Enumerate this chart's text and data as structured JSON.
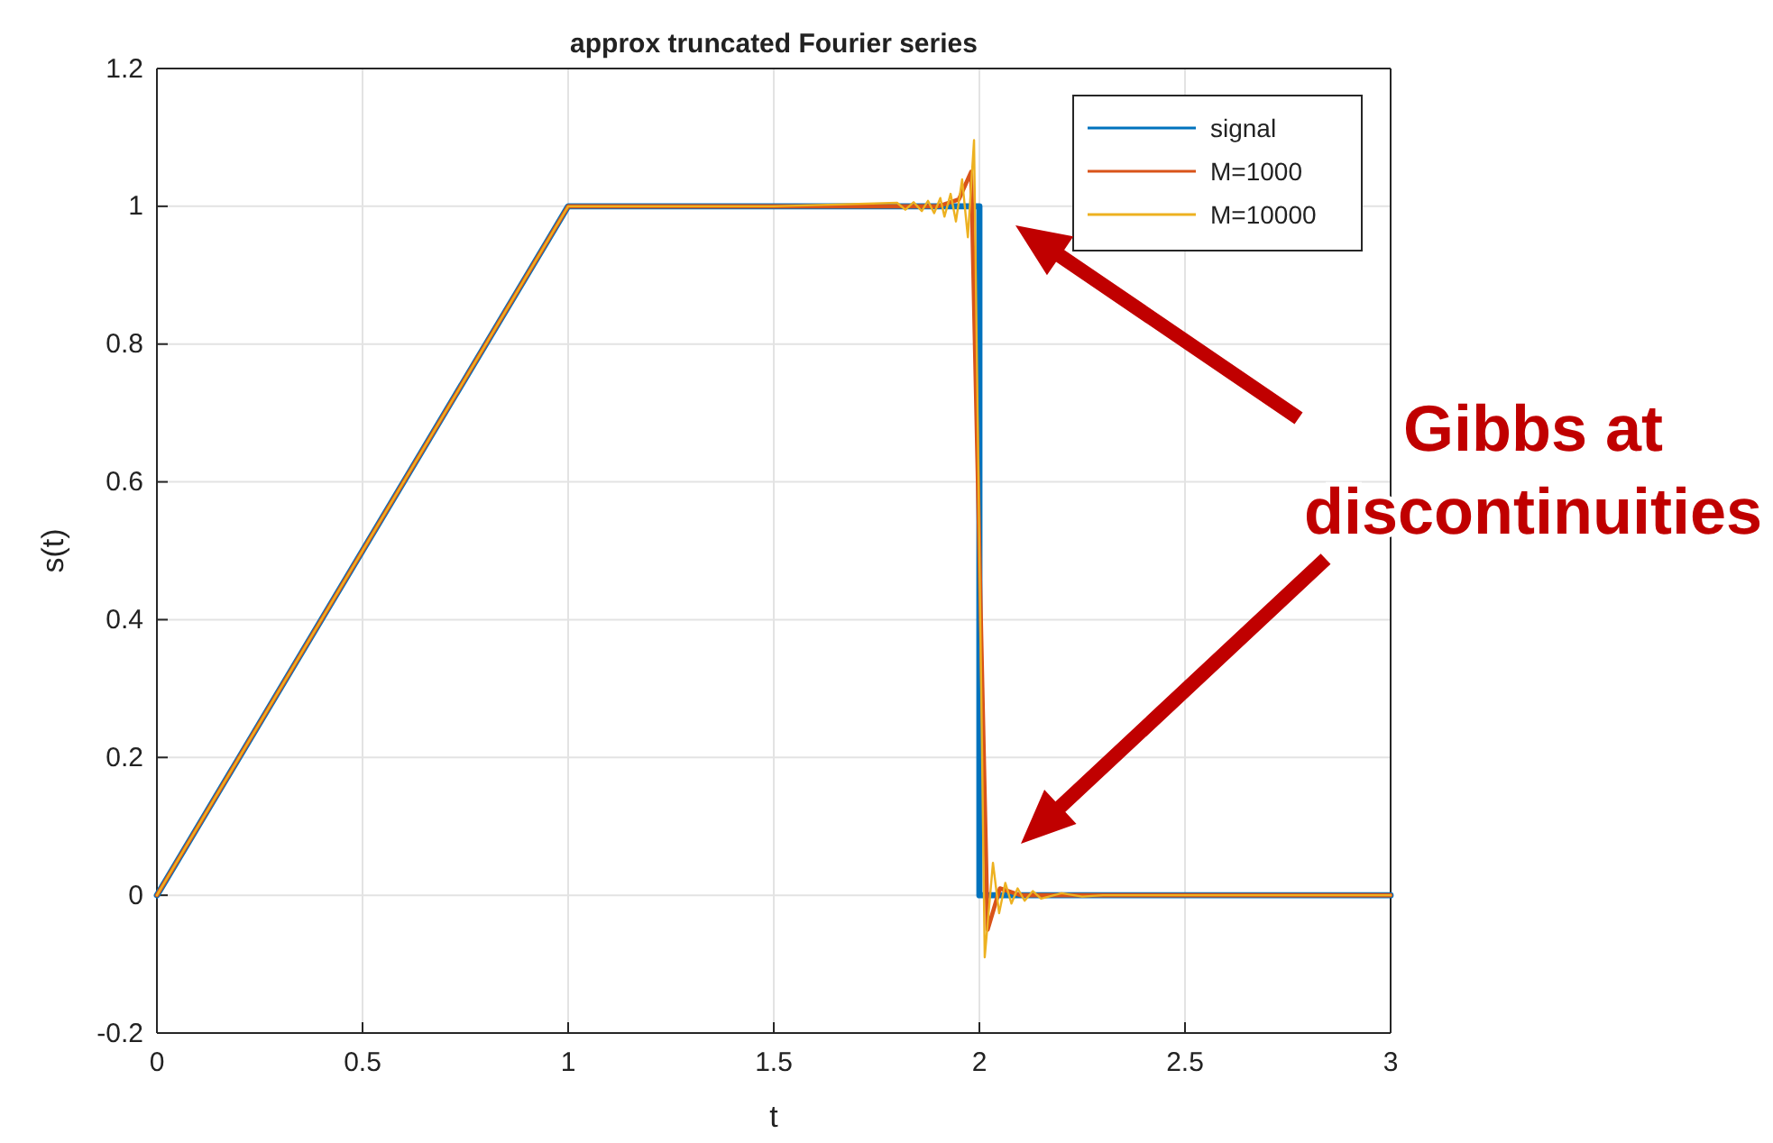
{
  "chart_data": {
    "type": "line",
    "title": "approx truncated Fourier series",
    "xlabel": "t",
    "ylabel": "s(t)",
    "xlim": [
      0,
      3
    ],
    "ylim": [
      -0.2,
      1.2
    ],
    "xticks": [
      0,
      0.5,
      1,
      1.5,
      2,
      2.5,
      3
    ],
    "yticks": [
      -0.2,
      0,
      0.2,
      0.4,
      0.6,
      0.8,
      1,
      1.2
    ],
    "grid": true,
    "legend": "top right",
    "line_style": "solid",
    "marker": "none",
    "annotations": [
      "Gibbs at discontinuities"
    ],
    "series": [
      {
        "name": "signal",
        "color": "#0072bd",
        "x": [
          0,
          1,
          2,
          2,
          3
        ],
        "values": [
          0,
          1,
          1,
          0,
          0
        ]
      },
      {
        "name": "M=1000",
        "color": "#d95319",
        "x": [
          0,
          1,
          1.9,
          1.95,
          1.98,
          2,
          2.02,
          2.05,
          2.1,
          3
        ],
        "values": [
          0,
          1,
          1,
          1.01,
          1.05,
          0.5,
          -0.05,
          0.01,
          0,
          0
        ]
      },
      {
        "name": "M=10000",
        "color": "#edb120",
        "x": [
          0,
          1,
          1.5,
          1.8,
          1.82,
          1.84,
          1.86,
          1.875,
          1.89,
          1.905,
          1.915,
          1.93,
          1.943,
          1.958,
          1.972,
          1.987,
          2,
          2.013,
          2.033,
          2.048,
          2.063,
          2.078,
          2.093,
          2.11,
          2.13,
          2.15,
          2.2,
          2.25,
          2.3,
          3
        ],
        "values": [
          0,
          1,
          1,
          1.005,
          0.995,
          1.006,
          0.993,
          1.008,
          0.99,
          1.012,
          0.985,
          1.018,
          0.978,
          1.039,
          0.955,
          1.096,
          0.5,
          -0.09,
          0.047,
          -0.026,
          0.018,
          -0.012,
          0.01,
          -0.008,
          0.006,
          -0.005,
          0.003,
          -0.002,
          0,
          0
        ]
      }
    ]
  }
}
